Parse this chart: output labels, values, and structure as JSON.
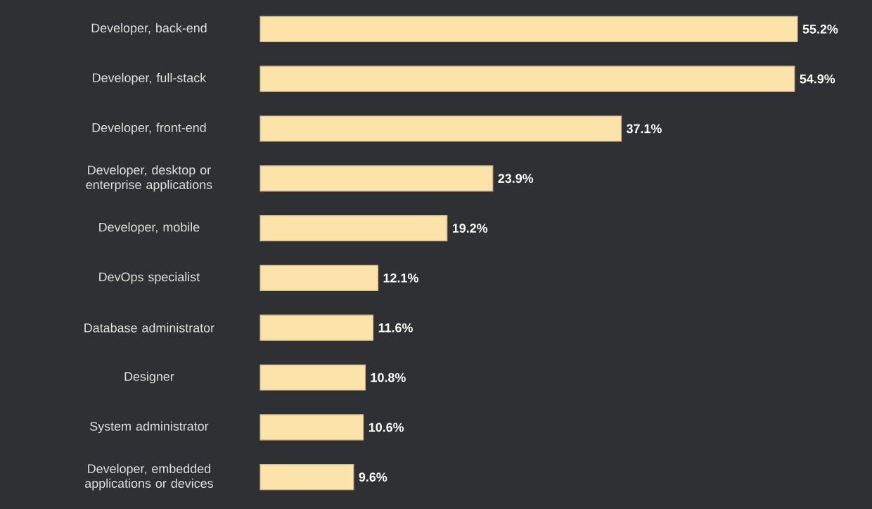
{
  "chart_data": {
    "type": "bar",
    "orientation": "horizontal",
    "color": "#fbe3aa",
    "categories": [
      "Developer, back-end",
      "Developer, full-stack",
      "Developer, front-end",
      "Developer, desktop or enterprise applications",
      "Developer, mobile",
      "DevOps specialist",
      "Database administrator",
      "Designer",
      "System administrator",
      "Developer, embedded applications or devices"
    ],
    "values": [
      55.2,
      54.9,
      37.1,
      23.9,
      19.2,
      12.1,
      11.6,
      10.8,
      10.6,
      9.6
    ],
    "value_labels": [
      "55.2%",
      "54.9%",
      "37.1%",
      "23.9%",
      "19.2%",
      "12.1%",
      "11.6%",
      "10.8%",
      "10.6%",
      "9.6%"
    ]
  }
}
